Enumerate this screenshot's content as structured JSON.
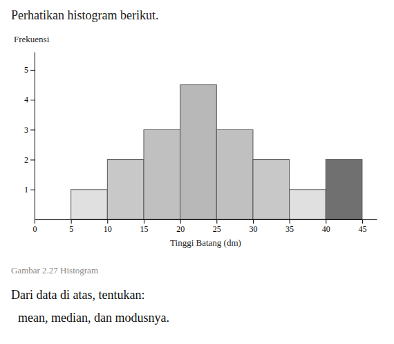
{
  "chart_data": {
    "type": "histogram",
    "title": "Perhatikan histogram berikut.",
    "x_label": "Tinggi Batang (dm)",
    "y_label": "Frekuensi",
    "annotations": [
      "Gambar 2.27 Histogram",
      "Dari data di atas, tentukan:",
      "mean, median, dan modusnya."
    ],
    "bins": [
      5,
      10,
      15,
      20,
      25,
      30,
      35,
      40,
      45
    ],
    "values": [
      1,
      2,
      3,
      4.5,
      3,
      2,
      1,
      2
    ],
    "colors": [
      "#e0e0e0",
      "#c8c8c8",
      "#c0c0c0",
      "#b8b8b8",
      "#c0c0c0",
      "#c8c8c8",
      "#e0e0e0",
      "#707070"
    ],
    "xlim": [
      0,
      47
    ],
    "ylim": [
      0,
      5.6
    ],
    "xticks": [
      0,
      5,
      10,
      15,
      20,
      25,
      30,
      35,
      40,
      45
    ],
    "yticks": [
      1,
      2,
      3,
      4,
      5
    ],
    "grid": false
  }
}
